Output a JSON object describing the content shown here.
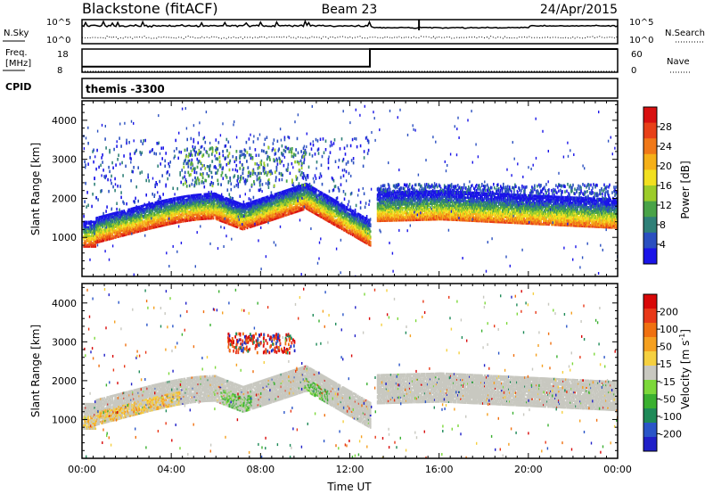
{
  "header": {
    "station": "Blackstone (fitACF)",
    "beam": "Beam 23",
    "date": "24/Apr/2015"
  },
  "labels": {
    "nsky": "N.Sky",
    "nsearch": "N.Search",
    "freq": "Freq.",
    "freq_unit": "[MHz]",
    "nave": "Nave",
    "cpid": "CPID",
    "cpid_value": "themis -3300",
    "nsky_top": "10^5",
    "nsky_bottom": "10^0",
    "nsearch_top": "10^5",
    "nsearch_bottom": "10^0",
    "freq_top": "18",
    "freq_bottom": "8",
    "nave_top": "60",
    "nave_bottom": "0"
  },
  "chart_data": [
    {
      "type": "line",
      "panel": "noise",
      "series": [
        {
          "name": "N.Sky",
          "style": "solid",
          "level": 0.7
        },
        {
          "name": "N.Search",
          "style": "dotted",
          "level": 0.25
        }
      ]
    },
    {
      "type": "line",
      "panel": "frequency",
      "ylim_freq": [
        8,
        18
      ],
      "ylim_nave": [
        0,
        60
      ],
      "series": [
        {
          "name": "Freq.",
          "points": [
            [
              0,
              10.4
            ],
            [
              12.9,
              10.4
            ],
            [
              12.9,
              18
            ],
            [
              24,
              18
            ]
          ]
        },
        {
          "name": "Nave",
          "style": "dotted",
          "points": [
            [
              0,
              0
            ],
            [
              24,
              0
            ]
          ]
        }
      ]
    },
    {
      "type": "heatmap",
      "panel": "power",
      "xlim": [
        0,
        24
      ],
      "ylim": [
        0,
        4500
      ],
      "ylabel": "Slant Range [km]",
      "yticks": [
        "1000",
        "2000",
        "3000",
        "4000"
      ],
      "colorbar": {
        "label": "Power [dB]",
        "ticks": [
          "4",
          "8",
          "12",
          "16",
          "20",
          "24",
          "28"
        ],
        "colors": [
          "#1a14e8",
          "#2a4fc0",
          "#2f8078",
          "#49a348",
          "#9ccc2a",
          "#f2e020",
          "#f5b018",
          "#f07818",
          "#e84018",
          "#d81010"
        ]
      }
    },
    {
      "type": "heatmap",
      "panel": "velocity",
      "xlim": [
        0,
        24
      ],
      "ylim": [
        0,
        4500
      ],
      "xlabel": "Time UT",
      "ylabel": "Slant Range [km]",
      "xticks": [
        "00:00",
        "04:00",
        "08:00",
        "12:00",
        "16:00",
        "20:00",
        "00:00"
      ],
      "yticks": [
        "1000",
        "2000",
        "3000",
        "4000"
      ],
      "colorbar": {
        "label": "Velocity [m s^-1]",
        "ticks": [
          "200",
          "100",
          "50",
          "15",
          "-15",
          "-50",
          "-100",
          "-200"
        ],
        "colors": [
          "#2020c8",
          "#2a55c8",
          "#1e8a58",
          "#3ab030",
          "#7cd83a",
          "#c8c8c0",
          "#f5d040",
          "#f5a020",
          "#f07010",
          "#e83818",
          "#d80808"
        ]
      }
    }
  ]
}
